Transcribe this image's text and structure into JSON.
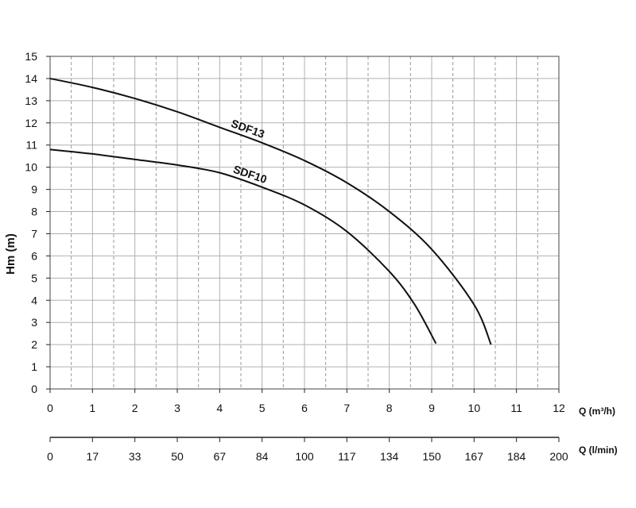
{
  "chart_data": {
    "type": "line",
    "ylabel": "Hm (m)",
    "xlabel": "Q (m³/h)",
    "xlabel2": "Q (l/min)",
    "xlim": [
      0,
      12
    ],
    "ylim": [
      0,
      15
    ],
    "x_ticks": [
      "0",
      "1",
      "2",
      "3",
      "4",
      "5",
      "6",
      "7",
      "8",
      "9",
      "10",
      "11",
      "12"
    ],
    "y_ticks": [
      "0",
      "1",
      "2",
      "3",
      "4",
      "5",
      "6",
      "7",
      "8",
      "9",
      "10",
      "11",
      "12",
      "13",
      "14",
      "15"
    ],
    "x2_ticks": [
      "0",
      "17",
      "33",
      "50",
      "67",
      "84",
      "100",
      "117",
      "134",
      "150",
      "167",
      "184",
      "200"
    ],
    "grid": true,
    "series": [
      {
        "name": "SDF13",
        "x": [
          0,
          1,
          2,
          3,
          4,
          5,
          6,
          7,
          8,
          9,
          10,
          10.4
        ],
        "y": [
          14.0,
          13.6,
          13.1,
          12.5,
          11.8,
          11.1,
          10.3,
          9.3,
          8.0,
          6.3,
          3.8,
          2.0
        ]
      },
      {
        "name": "SDF10",
        "x": [
          0,
          1,
          2,
          3,
          4,
          5,
          6,
          7,
          8,
          8.6,
          9.1
        ],
        "y": [
          10.8,
          10.6,
          10.35,
          10.1,
          9.75,
          9.1,
          8.3,
          7.1,
          5.3,
          3.8,
          2.05
        ]
      }
    ]
  }
}
